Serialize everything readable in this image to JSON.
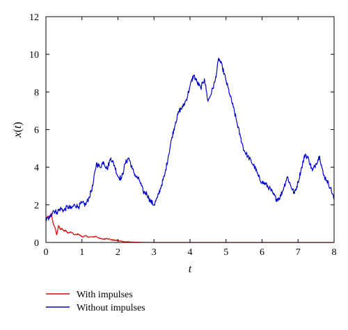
{
  "chart_data": {
    "type": "line",
    "xlabel": "t",
    "ylabel": "x(t)",
    "xlim": [
      0,
      8
    ],
    "ylim": [
      0,
      12
    ],
    "xticks": [
      "0",
      "1",
      "2",
      "3",
      "4",
      "5",
      "6",
      "7",
      "8"
    ],
    "yticks": [
      "0",
      "2",
      "4",
      "6",
      "8",
      "10",
      "12"
    ],
    "grid": false,
    "legend": "bottom-left",
    "series": [
      {
        "name": "With impulses",
        "color": "#e00000",
        "x": [
          0,
          0.05,
          0.1,
          0.15,
          0.2,
          0.25,
          0.3,
          0.35,
          0.4,
          0.45,
          0.5,
          0.55,
          0.6,
          0.7,
          0.8,
          0.9,
          1.0,
          1.1,
          1.2,
          1.3,
          1.4,
          1.5,
          1.6,
          1.7,
          1.8,
          1.9,
          2.0,
          2.1,
          2.2,
          2.4,
          2.6,
          3.0,
          4.0,
          5.0,
          6.0,
          7.0,
          8.0
        ],
        "values": [
          1.2,
          1.4,
          1.3,
          1.55,
          1.0,
          0.8,
          0.4,
          0.9,
          0.7,
          0.75,
          0.6,
          0.65,
          0.5,
          0.55,
          0.4,
          0.45,
          0.3,
          0.35,
          0.28,
          0.3,
          0.32,
          0.2,
          0.18,
          0.22,
          0.15,
          0.12,
          0.1,
          0.06,
          0.04,
          0.02,
          0.01,
          0.0,
          0.0,
          0.0,
          0.0,
          0.0,
          0.0
        ]
      },
      {
        "name": "Without impulses",
        "color": "#0000cc",
        "x": [
          0,
          0.1,
          0.2,
          0.3,
          0.4,
          0.5,
          0.6,
          0.7,
          0.8,
          0.9,
          1.0,
          1.1,
          1.2,
          1.3,
          1.4,
          1.5,
          1.6,
          1.7,
          1.8,
          1.9,
          2.0,
          2.1,
          2.2,
          2.3,
          2.4,
          2.5,
          2.6,
          2.7,
          2.8,
          2.9,
          3.0,
          3.1,
          3.2,
          3.3,
          3.4,
          3.5,
          3.6,
          3.7,
          3.8,
          3.9,
          4.0,
          4.1,
          4.2,
          4.3,
          4.4,
          4.5,
          4.6,
          4.7,
          4.8,
          4.9,
          5.0,
          5.1,
          5.2,
          5.3,
          5.4,
          5.5,
          5.6,
          5.7,
          5.8,
          5.9,
          6.0,
          6.1,
          6.2,
          6.3,
          6.4,
          6.5,
          6.6,
          6.7,
          6.8,
          6.9,
          7.0,
          7.1,
          7.2,
          7.3,
          7.4,
          7.5,
          7.6,
          7.7,
          7.8,
          7.9,
          8.0
        ],
        "values": [
          1.2,
          1.3,
          1.7,
          1.6,
          1.8,
          1.7,
          1.9,
          1.8,
          2.0,
          1.9,
          2.1,
          2.0,
          2.4,
          3.0,
          4.2,
          4.0,
          4.3,
          3.9,
          4.5,
          4.1,
          3.5,
          3.4,
          4.2,
          4.5,
          3.9,
          3.5,
          3.3,
          2.7,
          2.6,
          2.2,
          2.0,
          2.4,
          3.0,
          3.6,
          4.6,
          5.6,
          6.4,
          7.0,
          7.2,
          7.6,
          8.3,
          8.9,
          8.5,
          8.2,
          8.7,
          7.5,
          8.0,
          8.6,
          9.8,
          9.3,
          8.6,
          7.9,
          7.2,
          6.4,
          5.6,
          4.9,
          4.6,
          4.3,
          4.0,
          3.5,
          3.2,
          3.1,
          2.9,
          2.6,
          2.3,
          2.4,
          2.9,
          3.5,
          3.0,
          2.6,
          3.2,
          4.0,
          4.7,
          4.4,
          3.8,
          4.2,
          4.6,
          3.6,
          3.3,
          2.9,
          2.3
        ]
      }
    ]
  }
}
